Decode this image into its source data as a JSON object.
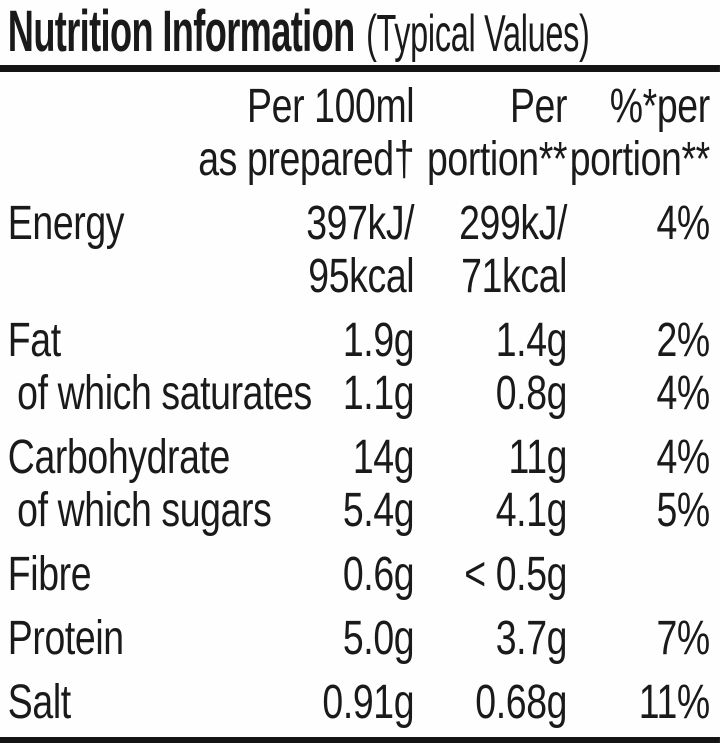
{
  "colors": {
    "background": "#fefefe",
    "text": "#1a1a1a",
    "rule": "#141414"
  },
  "title": {
    "main": "Nutrition Information",
    "suffix": "(Typical Values)"
  },
  "table": {
    "header": {
      "per_100ml": [
        "Per 100ml",
        "as prepared†"
      ],
      "per_portion": [
        "Per",
        "portion**"
      ],
      "percent_per_portion": [
        "%*per",
        "portion**"
      ]
    },
    "rows": [
      {
        "label": "Energy",
        "per_100ml": [
          "397kJ/",
          "95kcal"
        ],
        "per_portion": [
          "299kJ/",
          "71kcal"
        ],
        "percent": "4%"
      },
      {
        "label": "Fat",
        "per_100ml": "1.9g",
        "per_portion": "1.4g",
        "percent": "2%"
      },
      {
        "label": "of which saturates",
        "per_100ml": "1.1g",
        "per_portion": "0.8g",
        "percent": "4%"
      },
      {
        "label": "Carbohydrate",
        "per_100ml": "14g",
        "per_portion": "11g",
        "percent": "4%"
      },
      {
        "label": "of which sugars",
        "per_100ml": "5.4g",
        "per_portion": "4.1g",
        "percent": "5%"
      },
      {
        "label": "Fibre",
        "per_100ml": "0.6g",
        "per_portion": "< 0.5g",
        "percent": ""
      },
      {
        "label": "Protein",
        "per_100ml": "5.0g",
        "per_portion": "3.7g",
        "percent": "7%"
      },
      {
        "label": "Salt",
        "per_100ml": "0.91g",
        "per_portion": "0.68g",
        "percent": "11%"
      }
    ]
  }
}
